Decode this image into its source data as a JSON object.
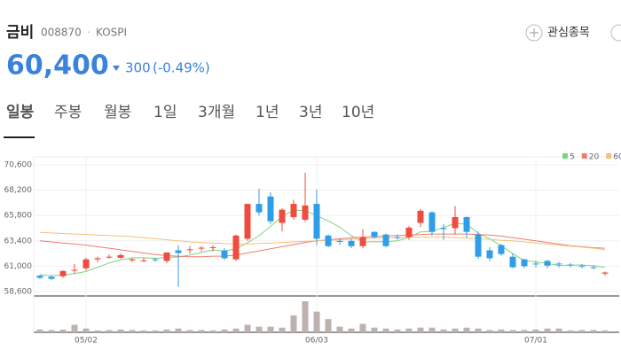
{
  "stock": {
    "name": "금비",
    "code": "008870",
    "separator": "·",
    "market": "KOSPI",
    "price": "60,400",
    "change": "300",
    "change_pct": "(-0.49%)",
    "watch": "관심종목"
  },
  "tabs": {
    "items": [
      "일봉",
      "주봉",
      "월봉",
      "1일",
      "3개월",
      "1년",
      "3년",
      "10년"
    ],
    "active": 0
  },
  "chart_data": {
    "type": "candlestick",
    "categories": [
      null,
      null,
      null,
      null,
      "05/02",
      null,
      null,
      null,
      null,
      null,
      null,
      null,
      null,
      null,
      null,
      null,
      null,
      null,
      null,
      null,
      null,
      null,
      null,
      null,
      "06/03",
      null,
      null,
      null,
      null,
      null,
      null,
      null,
      null,
      null,
      null,
      null,
      null,
      null,
      null,
      null,
      null,
      null,
      null,
      "07/01",
      null,
      null,
      null,
      null,
      null,
      null
    ],
    "open": [
      60100,
      60000,
      60050,
      60650,
      60800,
      61650,
      61900,
      61800,
      61550,
      61550,
      61650,
      61500,
      62500,
      62600,
      62700,
      62800,
      62500,
      61650,
      63600,
      66900,
      67600,
      65100,
      65650,
      65400,
      66900,
      63900,
      63400,
      63400,
      62900,
      64250,
      64000,
      63750,
      63750,
      65100,
      66100,
      64600,
      64600,
      65650,
      64000,
      62500,
      63000,
      61900,
      61650,
      61250,
      61500,
      61250,
      61150,
      61050,
      60900,
      60300
    ],
    "high": [
      60200,
      60100,
      60600,
      61200,
      61800,
      61900,
      62100,
      62200,
      61750,
      61800,
      61800,
      62300,
      63000,
      62900,
      62900,
      63000,
      62700,
      64000,
      66900,
      68350,
      68000,
      66500,
      67300,
      69850,
      68250,
      64000,
      63600,
      63600,
      64500,
      64300,
      64100,
      64000,
      64800,
      66400,
      66200,
      65000,
      66700,
      65700,
      64300,
      62800,
      63100,
      62200,
      61700,
      61500,
      61600,
      61400,
      61300,
      61200,
      61100,
      60500
    ],
    "low": [
      59800,
      59700,
      59900,
      60300,
      60600,
      61400,
      61700,
      61700,
      61400,
      61400,
      61400,
      61300,
      59050,
      62200,
      62400,
      62400,
      61600,
      61500,
      63400,
      65800,
      65000,
      64300,
      65400,
      65200,
      63000,
      62800,
      63000,
      62700,
      62700,
      63600,
      62800,
      63500,
      63500,
      64700,
      63900,
      63500,
      64000,
      63700,
      61700,
      61500,
      62000,
      60800,
      60800,
      60900,
      60800,
      60900,
      60900,
      60800,
      60700,
      60100
    ],
    "close": [
      59900,
      59800,
      60550,
      60650,
      61650,
      61750,
      61900,
      62050,
      61650,
      61550,
      61600,
      62300,
      62250,
      62600,
      62750,
      62800,
      61750,
      63900,
      66900,
      66100,
      65250,
      66350,
      66900,
      66750,
      63600,
      62900,
      63300,
      62900,
      63750,
      63750,
      62900,
      63700,
      64650,
      66250,
      64250,
      64500,
      65650,
      64250,
      61900,
      61750,
      62150,
      60900,
      61000,
      61200,
      61050,
      61200,
      61100,
      61000,
      60850,
      60400
    ],
    "volume": [
      15000,
      12000,
      14000,
      40000,
      20000,
      10000,
      12000,
      15000,
      12000,
      10000,
      10000,
      15000,
      20000,
      12000,
      12000,
      10000,
      15000,
      20000,
      40000,
      30000,
      30000,
      25000,
      90000,
      165000,
      110000,
      70000,
      30000,
      20000,
      45000,
      25000,
      20000,
      15000,
      20000,
      25000,
      25000,
      15000,
      20000,
      25000,
      20000,
      12000,
      15000,
      12000,
      12000,
      15000,
      20000,
      20000,
      10000,
      12000,
      12000,
      10000
    ],
    "series": [
      {
        "name": "5",
        "color": "#7ed37e",
        "values": [
          60200,
          60100,
          60150,
          60300,
          60500,
          60900,
          61300,
          61600,
          61800,
          61800,
          61750,
          61830,
          61870,
          62060,
          62300,
          62540,
          62430,
          62660,
          63220,
          63890,
          64780,
          65700,
          66300,
          66270,
          65770,
          65300,
          64690,
          63890,
          63290,
          63320,
          63320,
          63400,
          63730,
          64250,
          64310,
          64670,
          65060,
          64980,
          64110,
          63610,
          62940,
          62190,
          61540,
          61400,
          61260,
          61070,
          61110,
          61110,
          61040,
          60910
        ]
      },
      {
        "name": "20",
        "color": "#f07c70",
        "values": [
          63400,
          63300,
          63200,
          63100,
          63000,
          62850,
          62700,
          62550,
          62400,
          62250,
          62100,
          62000,
          61950,
          61900,
          61900,
          61950,
          61950,
          62050,
          62250,
          62450,
          62650,
          62850,
          63050,
          63250,
          63400,
          63500,
          63600,
          63700,
          63750,
          63800,
          63850,
          63900,
          63950,
          64000,
          64050,
          64050,
          64050,
          64050,
          64000,
          63950,
          63850,
          63700,
          63550,
          63400,
          63250,
          63100,
          62950,
          62850,
          62750,
          62700
        ]
      },
      {
        "name": "60",
        "color": "#f5c07a",
        "values": [
          64200,
          64150,
          64100,
          64050,
          64000,
          63950,
          63900,
          63850,
          63800,
          63700,
          63600,
          63500,
          63400,
          63300,
          63250,
          63200,
          63150,
          63100,
          63100,
          63150,
          63200,
          63250,
          63300,
          63350,
          63400,
          63450,
          63500,
          63550,
          63600,
          63650,
          63700,
          63700,
          63750,
          63750,
          63750,
          63750,
          63700,
          63650,
          63600,
          63550,
          63450,
          63400,
          63300,
          63200,
          63100,
          63000,
          62900,
          62800,
          62700,
          62550
        ]
      }
    ],
    "up_color": "#ef4b3f",
    "down_color": "#2f9ee8",
    "volume_color": "#bdb2ad",
    "ylim": [
      58600,
      70600
    ],
    "yticks": [
      {
        "value": 70600,
        "label": "70,600"
      },
      {
        "value": 68200,
        "label": "68,200"
      },
      {
        "value": 65800,
        "label": "65,800"
      },
      {
        "value": 63400,
        "label": "63,400"
      },
      {
        "value": 61000,
        "label": "61,000"
      },
      {
        "value": 58600,
        "label": "58,600"
      }
    ],
    "grid": true
  }
}
